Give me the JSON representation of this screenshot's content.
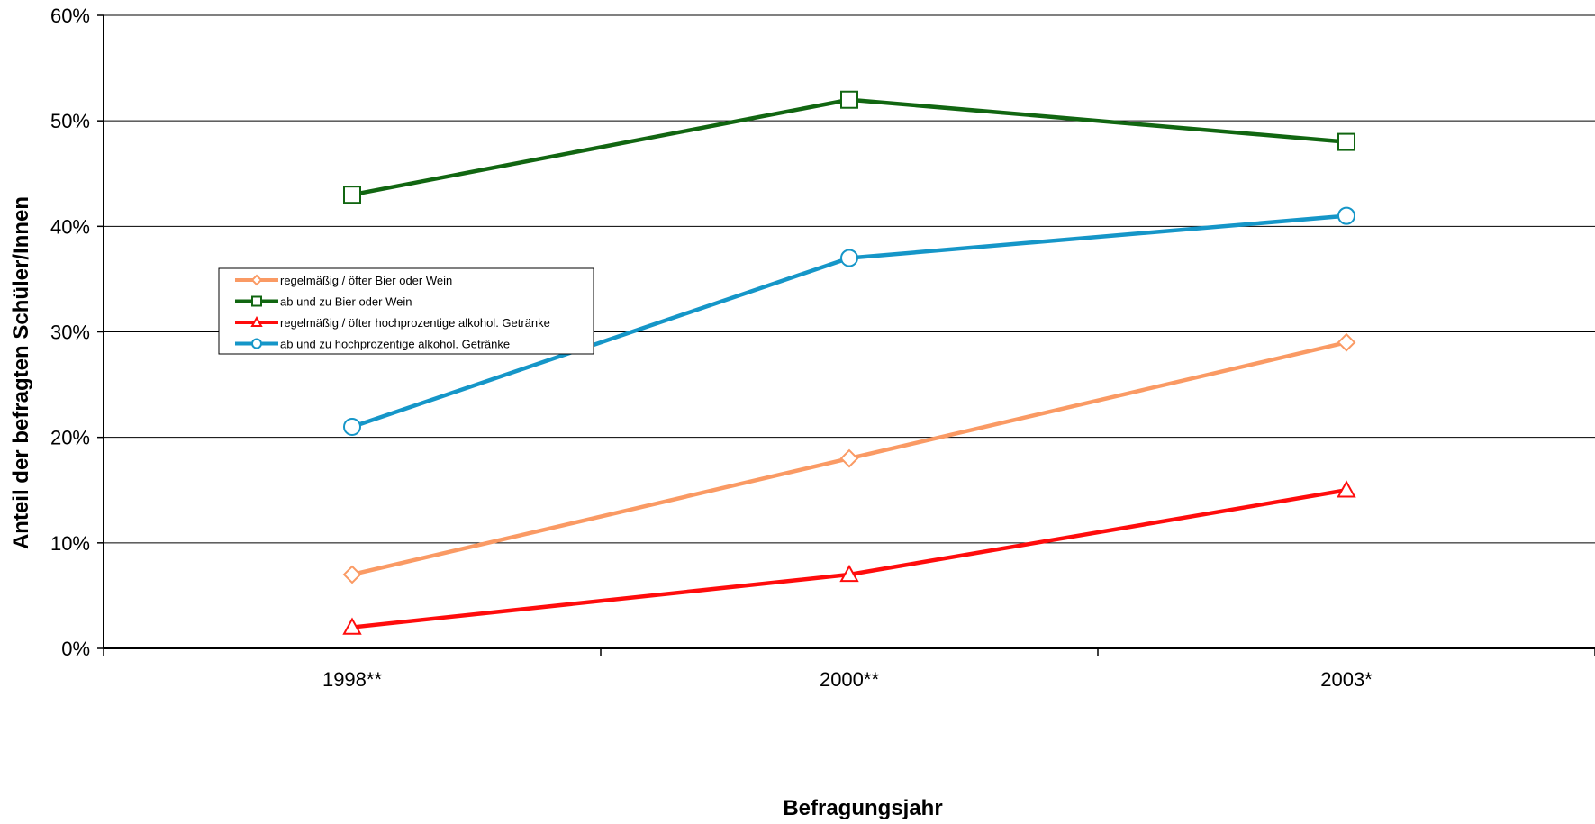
{
  "chart_data": {
    "type": "line",
    "title": "",
    "xlabel": "Befragungsjahr",
    "ylabel": "Anteil der befragten Schüler/Innen",
    "categories": [
      "1998**",
      "2000**",
      "2003*"
    ],
    "ylim": [
      0,
      60
    ],
    "yticks": [
      0,
      10,
      20,
      30,
      40,
      50,
      60
    ],
    "ytick_labels": [
      "0%",
      "10%",
      "20%",
      "30%",
      "40%",
      "50%",
      "60%"
    ],
    "grid": "horizontal",
    "legend_position": "left-middle",
    "series": [
      {
        "name": "regelmäßig / öfter Bier oder Wein",
        "values": [
          7,
          18,
          29
        ],
        "color": "#FA9A64",
        "marker": "diamond"
      },
      {
        "name": "ab und zu Bier oder Wein",
        "values": [
          43,
          52,
          48
        ],
        "color": "#116611",
        "marker": "square"
      },
      {
        "name": "regelmäßig / öfter hochprozentige alkohol. Getränke",
        "values": [
          2,
          7,
          15
        ],
        "color": "#FF0C0C",
        "marker": "triangle"
      },
      {
        "name": "ab und zu hochprozentige alkohol. Getränke",
        "values": [
          21,
          37,
          41
        ],
        "color": "#1596C8",
        "marker": "circle"
      }
    ]
  }
}
